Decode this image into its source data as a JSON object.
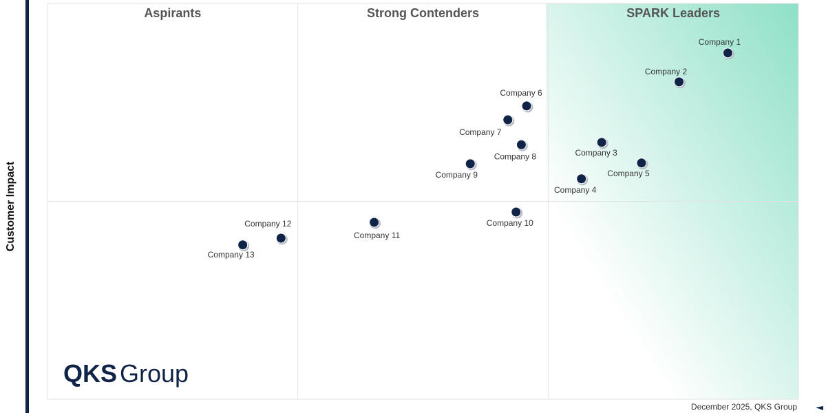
{
  "chart_data": {
    "type": "scatter",
    "y_label": "Customer Impact",
    "quadrants": [
      "Aspirants",
      "Strong Contenders",
      "SPARK Leaders"
    ],
    "labels": [
      "Company 1",
      "Company 2",
      "Company 3",
      "Company 4",
      "Company 5",
      "Company 6",
      "Company 7",
      "Company 8",
      "Company 9",
      "Company 10",
      "Company 11",
      "Company 12",
      "Company 13"
    ],
    "x": [
      90.6,
      84.1,
      73.8,
      71.1,
      79.1,
      63.8,
      61.3,
      63.1,
      56.3,
      62.4,
      43.5,
      31.1,
      26.0
    ],
    "y": [
      87.5,
      80.2,
      64.9,
      55.7,
      59.7,
      74.1,
      70.6,
      64.3,
      59.5,
      47.3,
      44.7,
      40.7,
      39.0
    ],
    "color": "#0f2447",
    "xlim": [
      0,
      100
    ],
    "ylim": [
      0,
      100
    ],
    "x_dividers": [
      33.33,
      66.67
    ],
    "y_dividers": [
      50
    ],
    "logo_bold": "QKS",
    "logo_rest": "Group",
    "footer": "December 2025, QKS Group"
  }
}
